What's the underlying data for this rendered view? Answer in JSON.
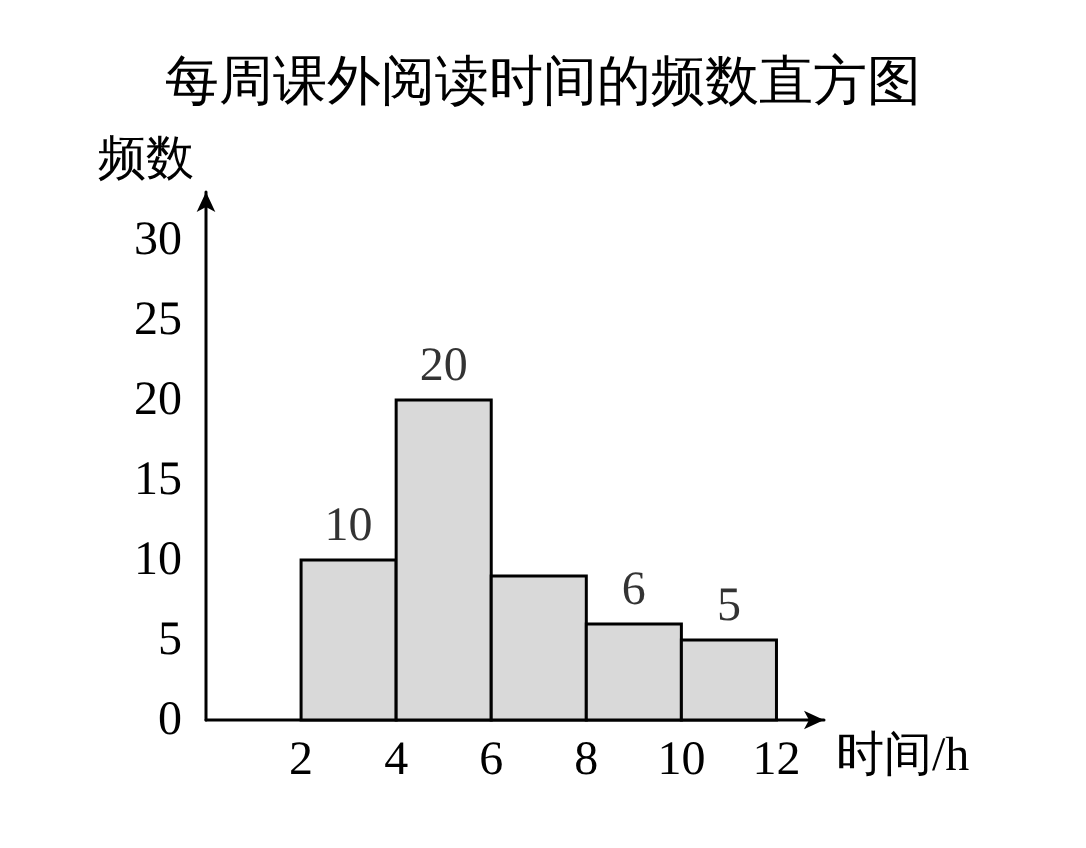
{
  "chart_data": {
    "type": "histogram",
    "title": "每周课外阅读时间的频数直方图",
    "xlabel": "时间/h",
    "ylabel": "频数",
    "bins": [
      2,
      4,
      6,
      8,
      10,
      12
    ],
    "values": [
      10,
      20,
      9,
      6,
      5
    ],
    "value_labels": [
      "10",
      "20",
      null,
      "6",
      "5"
    ],
    "color": "#d9d9d9",
    "xlim": [
      0,
      13
    ],
    "xticks": [
      2,
      4,
      6,
      8,
      10,
      12
    ],
    "ylim": [
      0,
      33
    ],
    "yticks": [
      0,
      5,
      10,
      15,
      20,
      25,
      30
    ],
    "grid": false
  }
}
